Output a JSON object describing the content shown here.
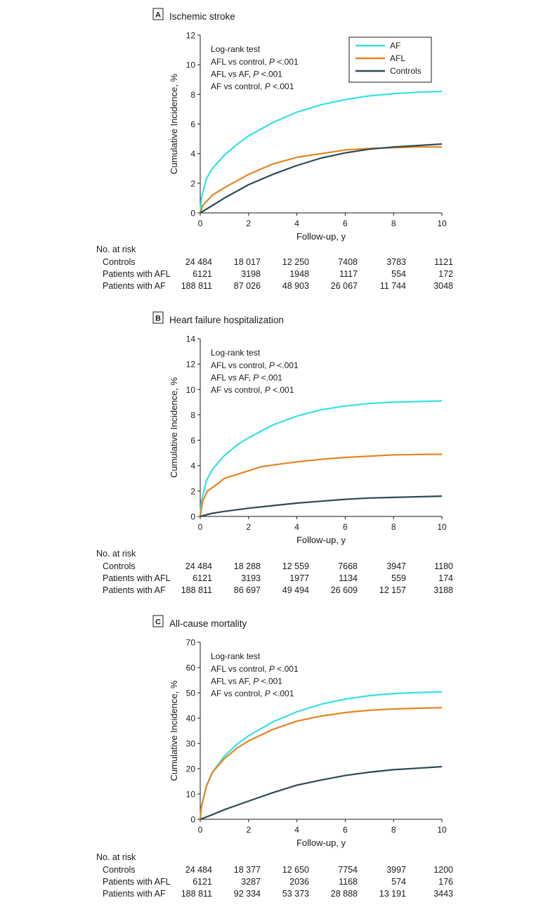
{
  "colors": {
    "AF": "#33e1e6",
    "AFL": "#e6841e",
    "Controls": "#2d4b52"
  },
  "legend": [
    "AF",
    "AFL",
    "Controls"
  ],
  "annotation": {
    "header": "Log-rank test",
    "lines": [
      {
        "pre": "AFL vs  control, ",
        "p": "P",
        "post": " <.001"
      },
      {
        "pre": "AFL vs AF, ",
        "p": "P",
        "post": " <.001"
      },
      {
        "pre": "AF vs control, ",
        "p": "P",
        "post": " <.001"
      }
    ],
    "panelA_line1": "AFL vs control, "
  },
  "risk_header": "No. at risk",
  "risk_groups": [
    "Controls",
    "Patients with AFL",
    "Patients with AF"
  ],
  "chart_data": [
    {
      "type": "line",
      "panel": "A",
      "title": "Ischemic stroke",
      "xlabel": "Follow-up, y",
      "ylabel": "Cumulative Incidence, %",
      "xlim": [
        0,
        10
      ],
      "ylim": [
        0,
        12
      ],
      "xticks": [
        0,
        2,
        4,
        6,
        8,
        10
      ],
      "yticks": [
        0,
        2,
        4,
        6,
        8,
        10,
        12
      ],
      "series": [
        {
          "name": "AF",
          "x": [
            0,
            0.05,
            0.25,
            0.5,
            1,
            1.5,
            2,
            3,
            4,
            5,
            6,
            7,
            8,
            9,
            10
          ],
          "y": [
            0,
            1.0,
            2.3,
            3.0,
            3.9,
            4.6,
            5.2,
            6.1,
            6.8,
            7.3,
            7.65,
            7.9,
            8.05,
            8.15,
            8.2
          ]
        },
        {
          "name": "AFL",
          "x": [
            0,
            0.1,
            0.5,
            1,
            2,
            3,
            4,
            5,
            6,
            7,
            8,
            9,
            10
          ],
          "y": [
            0,
            0.5,
            1.2,
            1.7,
            2.6,
            3.3,
            3.75,
            4.0,
            4.25,
            4.35,
            4.4,
            4.45,
            4.45
          ]
        },
        {
          "name": "Controls",
          "x": [
            0,
            0.5,
            1,
            2,
            3,
            4,
            5,
            6,
            7,
            8,
            9,
            10
          ],
          "y": [
            0,
            0.5,
            1.0,
            1.9,
            2.6,
            3.2,
            3.7,
            4.05,
            4.3,
            4.45,
            4.55,
            4.65
          ]
        }
      ],
      "at_risk": {
        "x": [
          0,
          2,
          4,
          6,
          8,
          10
        ],
        "Controls": [
          "24 484",
          "18 017",
          "12 250",
          "7408",
          "3783",
          "1121"
        ],
        "Patients with AFL": [
          "6121",
          "3198",
          "1948",
          "1117",
          "554",
          "172"
        ],
        "Patients with AF": [
          "188 811",
          "87 026",
          "48 903",
          "26 067",
          "11 744",
          "3048"
        ]
      }
    },
    {
      "type": "line",
      "panel": "B",
      "title": "Heart failure hospitalization",
      "xlabel": "Follow-up, y",
      "ylabel": "Cumulative Incidence, %",
      "xlim": [
        0,
        10
      ],
      "ylim": [
        0,
        14
      ],
      "xticks": [
        0,
        2,
        4,
        6,
        8,
        10
      ],
      "yticks": [
        0,
        2,
        4,
        6,
        8,
        10,
        12,
        14
      ],
      "series": [
        {
          "name": "AF",
          "x": [
            0,
            0.05,
            0.25,
            0.5,
            1,
            1.5,
            2,
            3,
            4,
            5,
            6,
            7,
            8,
            9,
            10
          ],
          "y": [
            0,
            1.2,
            2.8,
            3.7,
            4.8,
            5.6,
            6.2,
            7.2,
            7.9,
            8.4,
            8.7,
            8.9,
            9.0,
            9.05,
            9.1
          ]
        },
        {
          "name": "AFL",
          "x": [
            0,
            0.1,
            0.3,
            0.6,
            1,
            1.5,
            2,
            2.5,
            3,
            4,
            5,
            6,
            7,
            8,
            9,
            10
          ],
          "y": [
            0,
            1.2,
            2.0,
            2.4,
            3.0,
            3.3,
            3.6,
            3.9,
            4.05,
            4.3,
            4.5,
            4.65,
            4.75,
            4.85,
            4.88,
            4.9
          ]
        },
        {
          "name": "Controls",
          "x": [
            0,
            0.5,
            1,
            2,
            3,
            4,
            5,
            6,
            7,
            8,
            9,
            10
          ],
          "y": [
            0,
            0.25,
            0.4,
            0.65,
            0.85,
            1.05,
            1.2,
            1.35,
            1.45,
            1.5,
            1.55,
            1.6
          ]
        }
      ],
      "at_risk": {
        "x": [
          0,
          2,
          4,
          6,
          8,
          10
        ],
        "Controls": [
          "24 484",
          "18 288",
          "12 559",
          "7668",
          "3947",
          "1180"
        ],
        "Patients with AFL": [
          "6121",
          "3193",
          "1977",
          "1134",
          "559",
          "174"
        ],
        "Patients with AF": [
          "188 811",
          "86 697",
          "49 494",
          "26 609",
          "12 157",
          "3188"
        ]
      }
    },
    {
      "type": "line",
      "panel": "C",
      "title": "All-cause mortality",
      "xlabel": "Follow-up, y",
      "ylabel": "Cumulative Incidence, %",
      "xlim": [
        0,
        10
      ],
      "ylim": [
        0,
        70
      ],
      "xticks": [
        0,
        2,
        4,
        6,
        8,
        10
      ],
      "yticks": [
        0,
        10,
        20,
        30,
        40,
        50,
        60,
        70
      ],
      "series": [
        {
          "name": "AF",
          "x": [
            0,
            0.05,
            0.25,
            0.5,
            1,
            1.5,
            2,
            3,
            4,
            5,
            6,
            7,
            8,
            9,
            10
          ],
          "y": [
            0,
            5,
            13,
            18.5,
            25,
            29.5,
            33,
            38.5,
            42.5,
            45.5,
            47.5,
            48.9,
            49.7,
            50.1,
            50.4
          ]
        },
        {
          "name": "AFL",
          "x": [
            0,
            0.05,
            0.25,
            0.5,
            1,
            1.5,
            2,
            3,
            4,
            5,
            6,
            7,
            8,
            9,
            10
          ],
          "y": [
            0,
            5,
            13,
            18.5,
            24,
            28,
            31,
            35.5,
            38.8,
            40.8,
            42.2,
            43.1,
            43.6,
            43.9,
            44.1
          ]
        },
        {
          "name": "Controls",
          "x": [
            0,
            0.5,
            1,
            2,
            3,
            4,
            5,
            6,
            7,
            8,
            9,
            10
          ],
          "y": [
            0,
            1.8,
            3.8,
            7.2,
            10.5,
            13.5,
            15.5,
            17.3,
            18.6,
            19.6,
            20.2,
            20.8
          ]
        }
      ],
      "at_risk": {
        "x": [
          0,
          2,
          4,
          6,
          8,
          10
        ],
        "Controls": [
          "24 484",
          "18 377",
          "12 650",
          "7754",
          "3997",
          "1200"
        ],
        "Patients with AFL": [
          "6121",
          "3287",
          "2036",
          "1168",
          "574",
          "176"
        ],
        "Patients with AF": [
          "188 811",
          "92 334",
          "53 373",
          "28 888",
          "13 191",
          "3443"
        ]
      }
    }
  ]
}
